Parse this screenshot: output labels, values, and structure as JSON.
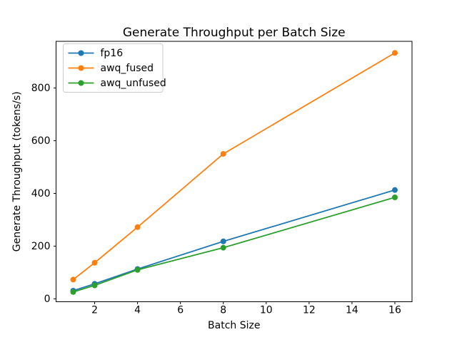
{
  "chart_data": {
    "type": "line",
    "title": "Generate Throughput per Batch Size",
    "xlabel": "Batch Size",
    "ylabel": "Generate Throughput (tokens/s)",
    "x": [
      1,
      2,
      4,
      8,
      16
    ],
    "series": [
      {
        "name": "fp16",
        "color": "#1f77b4",
        "values": [
          31,
          57,
          113,
          218,
          413
        ]
      },
      {
        "name": "awq_fused",
        "color": "#ff7f0e",
        "values": [
          73,
          137,
          272,
          550,
          933
        ]
      },
      {
        "name": "awq_unfused",
        "color": "#2ca02c",
        "values": [
          26,
          51,
          110,
          194,
          385
        ]
      }
    ],
    "xticks": [
      2,
      4,
      6,
      8,
      10,
      12,
      14,
      16
    ],
    "yticks": [
      0,
      200,
      400,
      600,
      800
    ],
    "xlim": [
      0.2,
      16.8
    ],
    "ylim": [
      -11,
      977
    ],
    "marker": "circle",
    "grid": false,
    "legend_position": "upper-left",
    "colors": {
      "spine": "#000000",
      "background": "#ffffff",
      "legend_border": "#cccccc",
      "legend_background": "#ffffff"
    }
  }
}
